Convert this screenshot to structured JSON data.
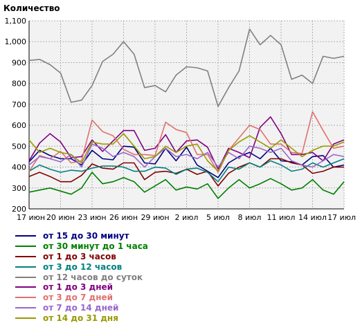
{
  "chart_data": {
    "type": "line",
    "title": "",
    "ylabel": "Количество",
    "xlabel": "",
    "ylim": [
      200,
      1100
    ],
    "yticks": [
      200,
      300,
      400,
      500,
      600,
      700,
      800,
      900,
      "1,000",
      "1,100"
    ],
    "xticks": [
      "17 июн",
      "20 июн",
      "23 июн",
      "26 июн",
      "29 июн",
      "2 июл",
      "5 июл",
      "8 июл",
      "11 июл",
      "14 июл",
      "17 июл"
    ],
    "grid": true,
    "legend_position": "bottom",
    "x": [
      "17 июн",
      "18 июн",
      "19 июн",
      "20 июн",
      "21 июн",
      "22 июн",
      "23 июн",
      "24 июн",
      "25 июн",
      "26 июн",
      "27 июн",
      "28 июн",
      "29 июн",
      "30 июн",
      "1 июл",
      "2 июл",
      "3 июл",
      "4 июл",
      "5 июл",
      "6 июл",
      "7 июл",
      "8 июл",
      "9 июл",
      "10 июл",
      "11 июл",
      "12 июл",
      "13 июл",
      "14 июл",
      "15 июл",
      "16 июл",
      "17 июл"
    ],
    "series": [
      {
        "name": "от 15 до 30 минут",
        "color": "#000080",
        "values": [
          425,
          480,
          455,
          440,
          440,
          410,
          480,
          440,
          435,
          500,
          495,
          420,
          415,
          490,
          430,
          495,
          410,
          380,
          350,
          420,
          450,
          470,
          440,
          490,
          430,
          425,
          410,
          450,
          455,
          400,
          410
        ]
      },
      {
        "name": "от 30 минут до 1 часа",
        "color": "#008000",
        "values": [
          280,
          290,
          300,
          285,
          270,
          300,
          375,
          320,
          330,
          350,
          330,
          280,
          310,
          340,
          290,
          305,
          295,
          320,
          250,
          300,
          340,
          300,
          320,
          345,
          320,
          290,
          300,
          340,
          290,
          270,
          330
        ]
      },
      {
        "name": "от 1 до 3 часов",
        "color": "#800000",
        "values": [
          355,
          375,
          355,
          330,
          330,
          360,
          415,
          395,
          390,
          420,
          420,
          340,
          375,
          380,
          370,
          390,
          365,
          380,
          310,
          370,
          400,
          420,
          400,
          440,
          440,
          420,
          410,
          370,
          380,
          400,
          400
        ]
      },
      {
        "name": "от 3 до 12 часов",
        "color": "#008080",
        "values": [
          380,
          410,
          390,
          375,
          385,
          380,
          395,
          405,
          405,
          400,
          380,
          380,
          400,
          395,
          365,
          390,
          395,
          375,
          330,
          400,
          390,
          420,
          400,
          430,
          410,
          380,
          390,
          420,
          400,
          420,
          440
        ]
      },
      {
        "name": "от 12 часов до суток",
        "color": "#808080",
        "values": [
          910,
          915,
          890,
          850,
          710,
          720,
          790,
          905,
          940,
          1000,
          940,
          780,
          790,
          760,
          840,
          880,
          875,
          860,
          690,
          780,
          860,
          1060,
          985,
          1030,
          985,
          820,
          840,
          800,
          930,
          920,
          930
        ]
      },
      {
        "name": "от 1 до 3 дней",
        "color": "#800080",
        "values": [
          430,
          515,
          560,
          520,
          445,
          450,
          530,
          475,
          525,
          575,
          575,
          480,
          490,
          555,
          470,
          525,
          530,
          495,
          390,
          490,
          470,
          445,
          590,
          640,
          560,
          460,
          460,
          470,
          430,
          510,
          530
        ]
      },
      {
        "name": "от 3 до 7 дней",
        "color": "#e07070",
        "values": [
          380,
          455,
          440,
          475,
          420,
          430,
          625,
          570,
          550,
          485,
          460,
          460,
          455,
          615,
          580,
          565,
          460,
          460,
          375,
          480,
          540,
          600,
          580,
          510,
          510,
          470,
          465,
          665,
          575,
          490,
          500
        ]
      },
      {
        "name": "от 7 до 14 дней",
        "color": "#9966cc",
        "values": [
          410,
          450,
          440,
          425,
          460,
          400,
          510,
          490,
          450,
          470,
          450,
          400,
          450,
          490,
          450,
          460,
          440,
          470,
          400,
          470,
          440,
          500,
          490,
          470,
          490,
          430,
          410,
          400,
          430,
          460,
          450
        ]
      },
      {
        "name": "от 14 до 31 дня",
        "color": "#999900",
        "values": [
          530,
          470,
          490,
          470,
          460,
          420,
          520,
          510,
          510,
          560,
          500,
          440,
          450,
          500,
          470,
          500,
          510,
          430,
          380,
          480,
          520,
          550,
          520,
          490,
          530,
          490,
          450,
          480,
          500,
          500,
          520
        ]
      }
    ]
  }
}
